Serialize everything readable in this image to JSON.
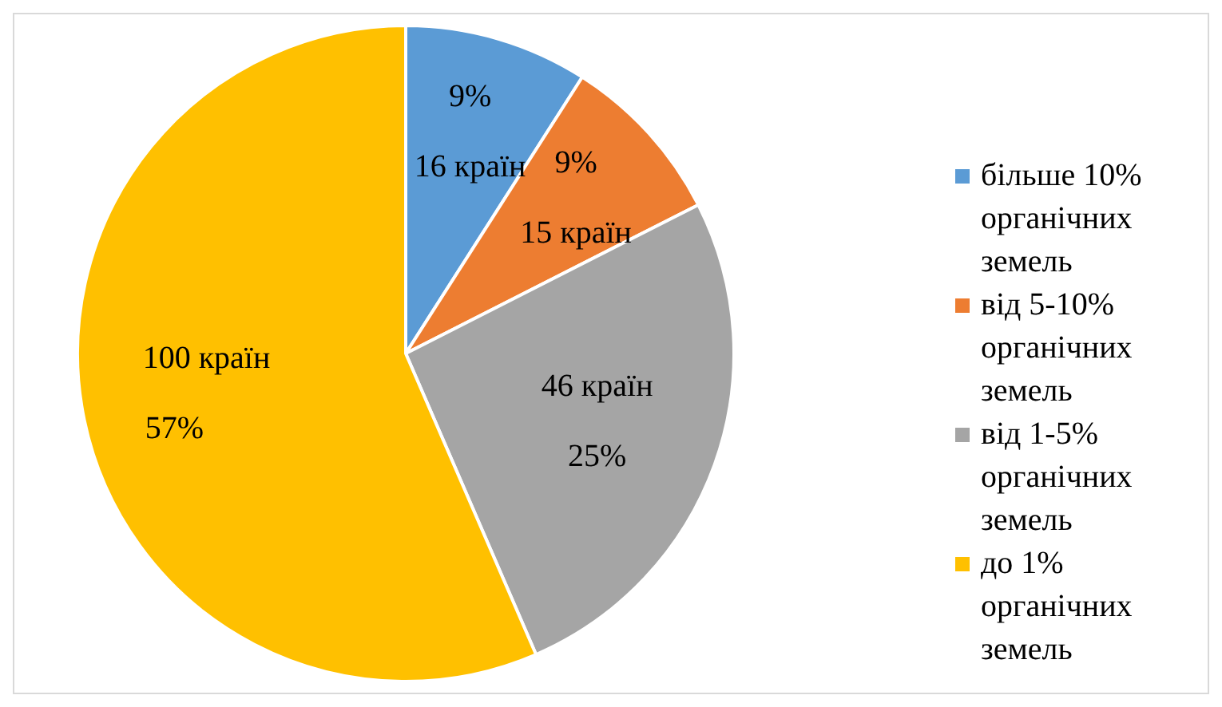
{
  "chart_data": {
    "type": "pie",
    "categories": [
      "більше 10% органічних земель",
      "від 5-10% органічних земель",
      "від 1-5% органічних земель",
      "до 1% органічних земель"
    ],
    "values": [
      16,
      15,
      46,
      100
    ],
    "colors": [
      "#5b9bd5",
      "#ed7d31",
      "#a5a5a5",
      "#ffc000"
    ],
    "value_labels": [
      "9%\n16 країн",
      "9%\n15 країн",
      "46 країн\n25%",
      "100 країн\n57%"
    ],
    "legend": "right"
  }
}
